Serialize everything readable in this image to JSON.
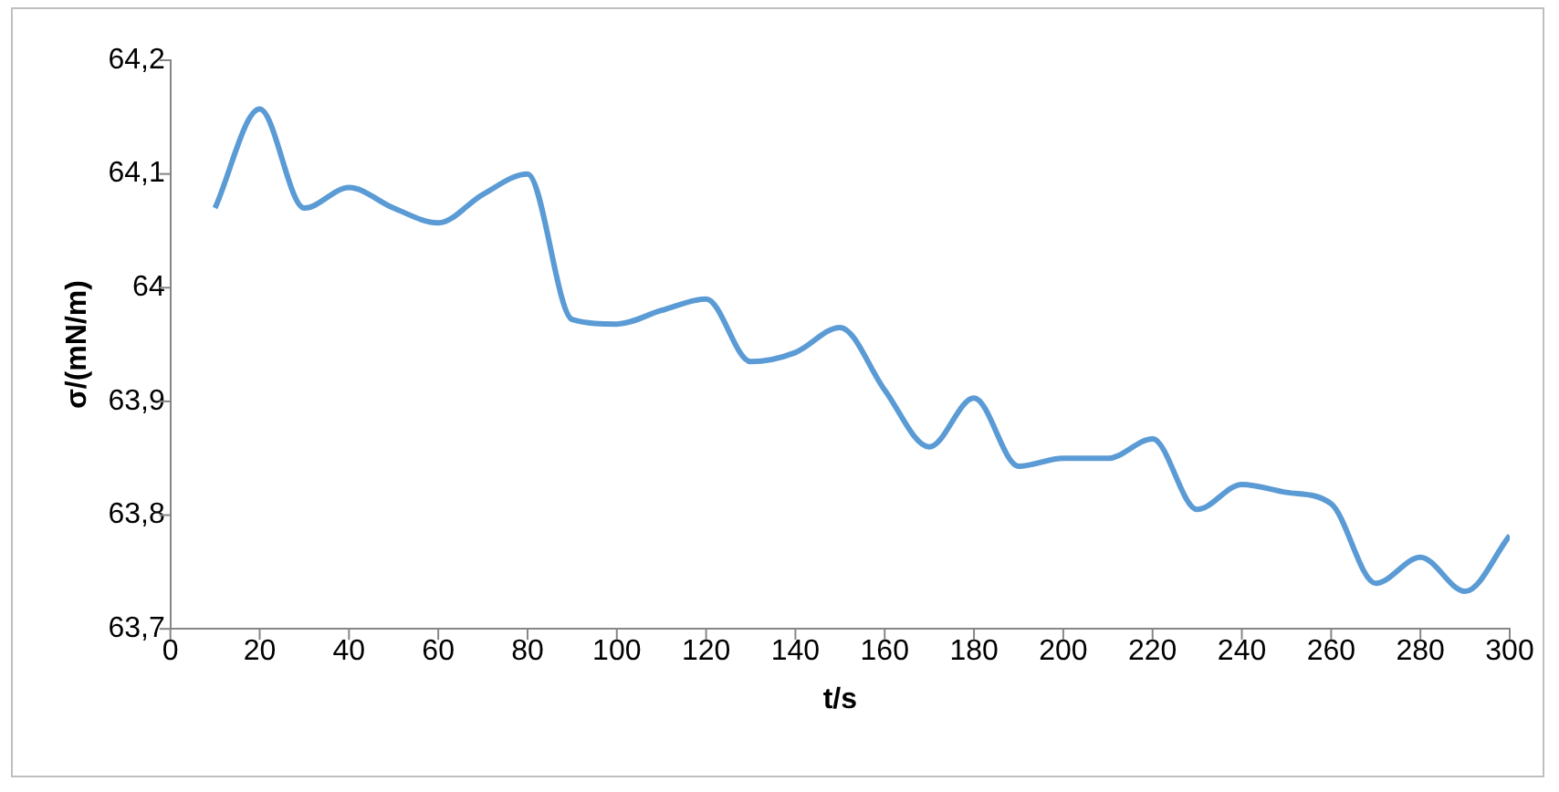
{
  "chart_data": {
    "type": "line",
    "xlabel": "t/s",
    "ylabel": "σ/(mN/m)",
    "x": [
      10,
      20,
      30,
      40,
      50,
      60,
      70,
      80,
      90,
      100,
      110,
      120,
      130,
      140,
      150,
      160,
      170,
      180,
      190,
      200,
      210,
      220,
      230,
      240,
      250,
      260,
      270,
      280,
      290,
      300
    ],
    "series": [
      {
        "color": "#5b9bd5",
        "values": [
          64.07,
          64.157,
          64.07,
          64.088,
          64.07,
          64.057,
          64.082,
          64.1,
          63.972,
          63.968,
          63.98,
          63.99,
          63.935,
          63.943,
          63.965,
          63.91,
          63.86,
          63.903,
          63.843,
          63.85,
          63.85,
          63.867,
          63.805,
          63.827,
          63.82,
          63.81,
          63.74,
          63.763,
          63.733,
          63.782
        ]
      }
    ],
    "xlim": [
      0,
      300
    ],
    "xticks": [
      0,
      20,
      40,
      60,
      80,
      100,
      120,
      140,
      160,
      180,
      200,
      220,
      240,
      260,
      280,
      300
    ],
    "ylim": [
      63.7,
      64.2
    ],
    "yticks": [
      {
        "value": 63.7,
        "label": "63,7"
      },
      {
        "value": 63.8,
        "label": "63,8"
      },
      {
        "value": 63.9,
        "label": "63,9"
      },
      64,
      {
        "value": 64.1,
        "label": "64,1"
      },
      {
        "value": 64.2,
        "label": "64,2"
      }
    ],
    "grid": false,
    "legend": false,
    "marker": "none",
    "line_style": "solid"
  }
}
